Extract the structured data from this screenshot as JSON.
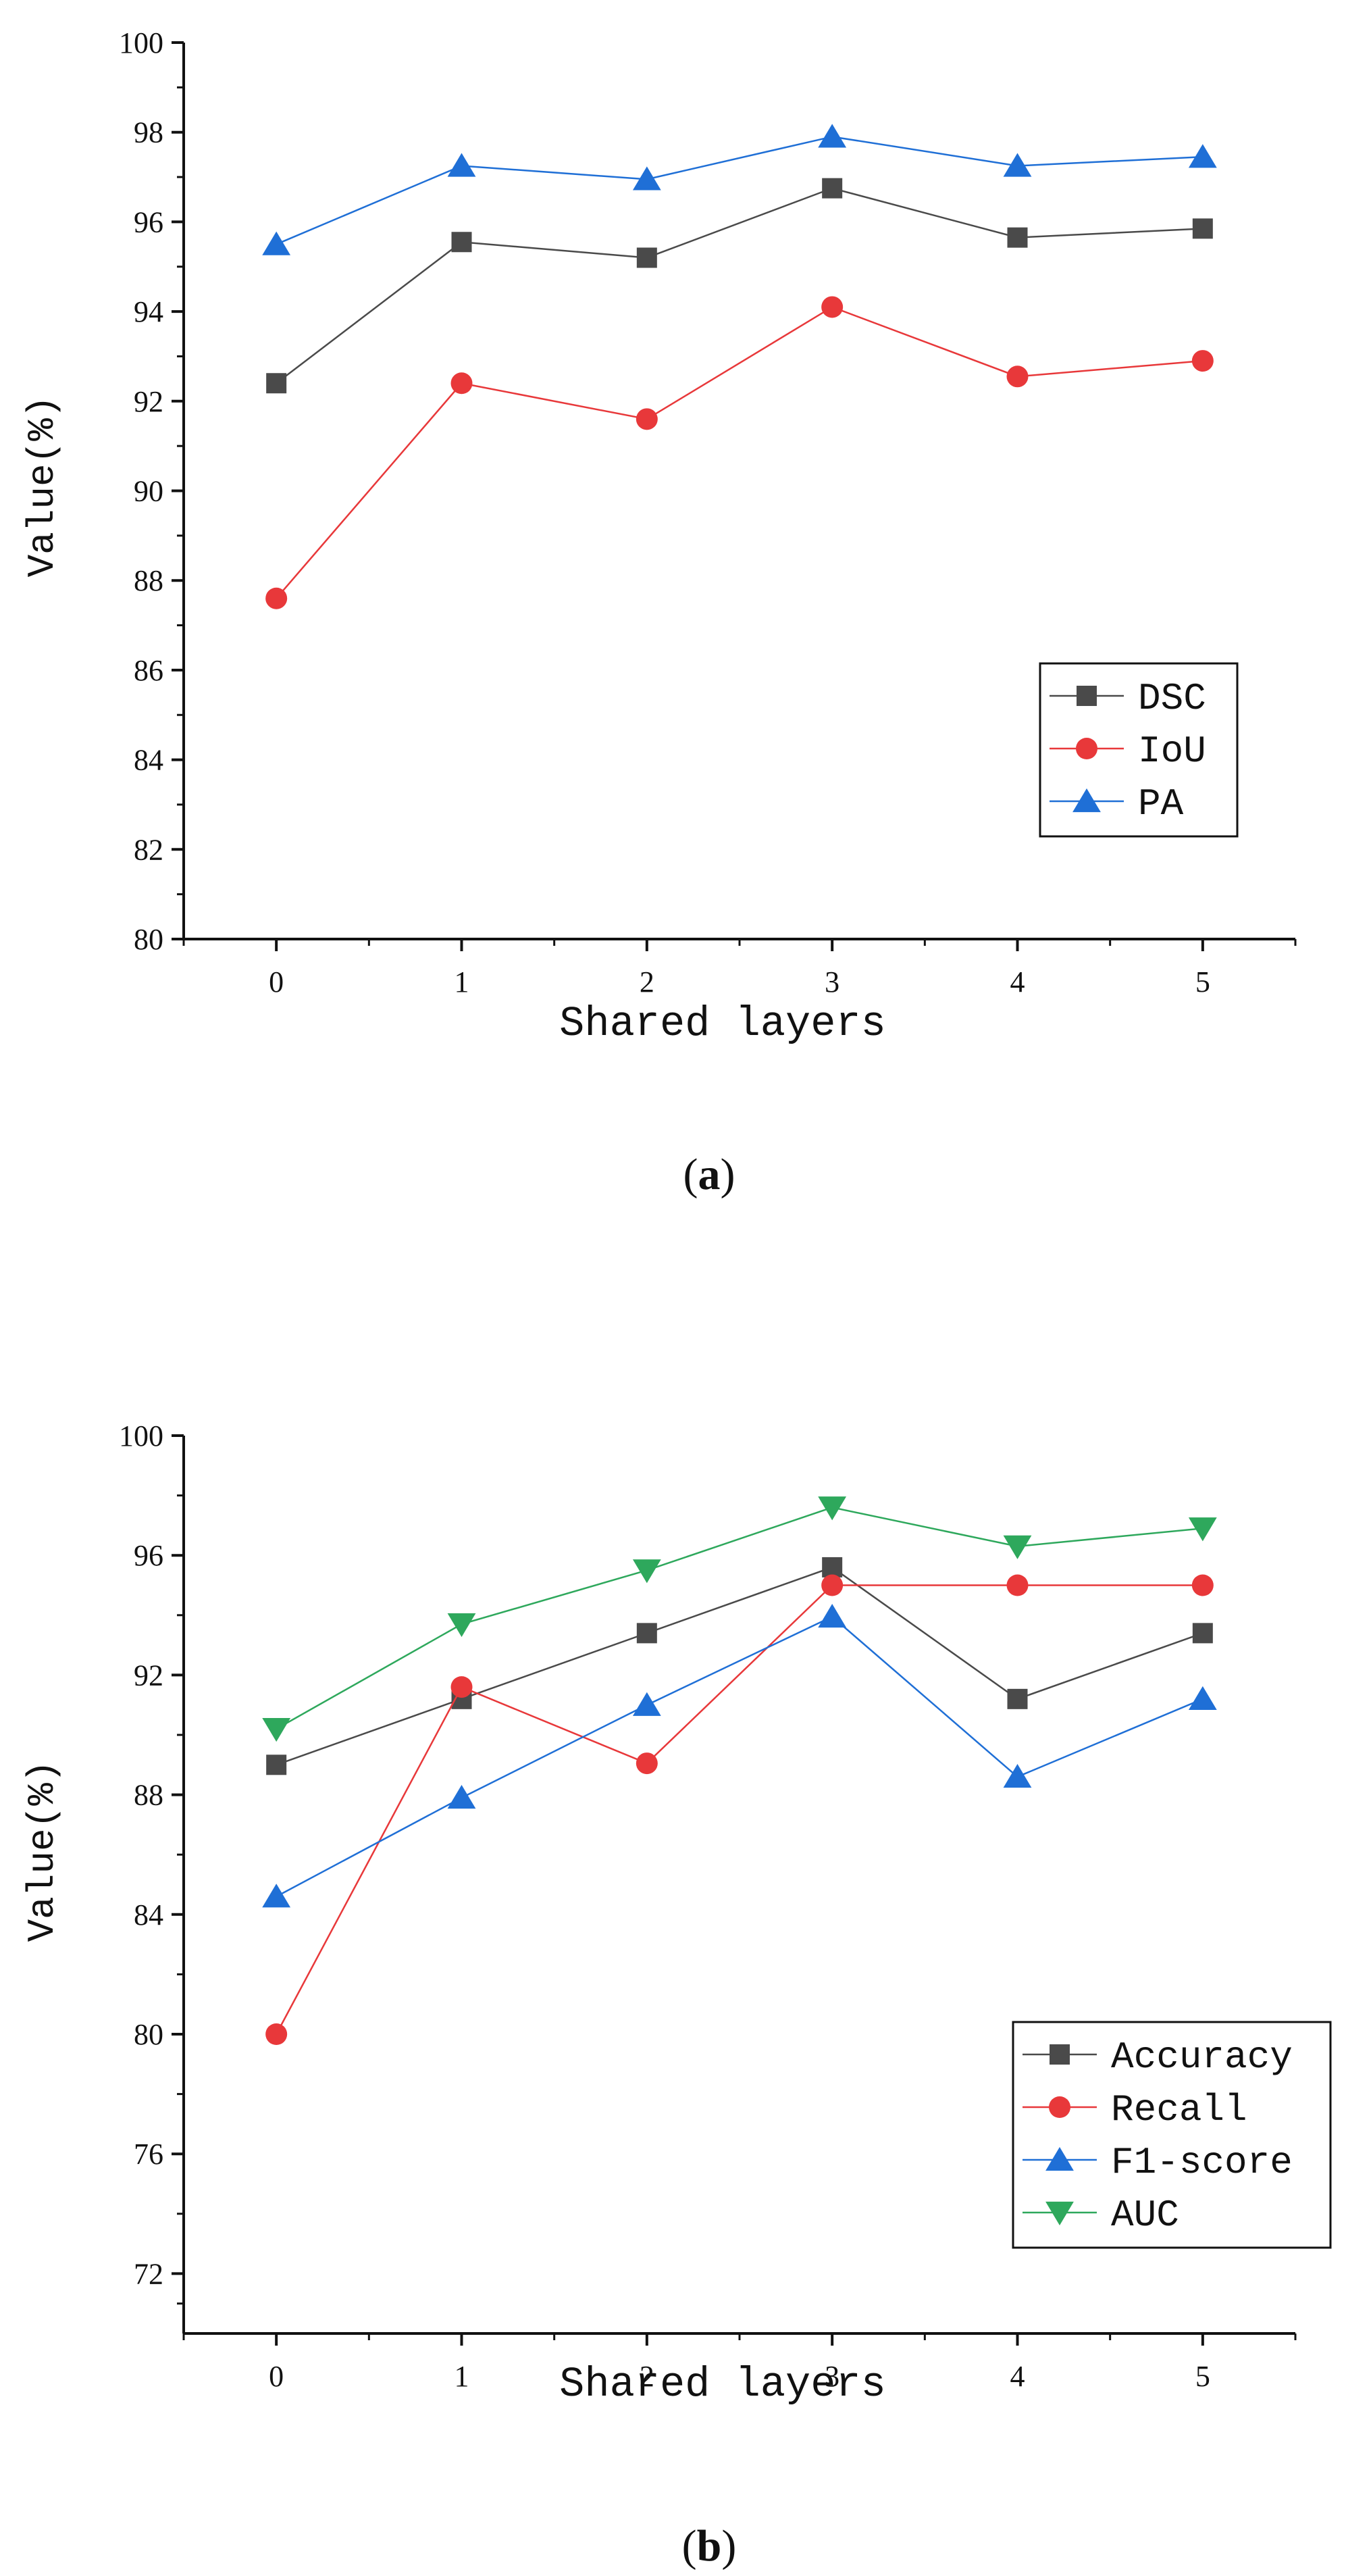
{
  "figure": {
    "panels": [
      {
        "caption_open": "(",
        "caption_letter": "a",
        "caption_close": ")"
      },
      {
        "caption_open": "(",
        "caption_letter": "b",
        "caption_close": ")"
      }
    ]
  },
  "chart_data": [
    {
      "type": "line",
      "xlabel": "Shared layers",
      "ylabel": "Value(%)",
      "x": [
        0,
        1,
        2,
        3,
        4,
        5
      ],
      "xlim": [
        -0.5,
        5.5
      ],
      "ylim": [
        80,
        100
      ],
      "yticks": [
        80,
        82,
        84,
        86,
        88,
        90,
        92,
        94,
        96,
        98,
        100
      ],
      "ytick_labels": [
        "80",
        "82",
        "84",
        "86",
        "88",
        "90",
        "92",
        "94",
        "96",
        "98",
        "100"
      ],
      "xtick_labels": [
        "0",
        "1",
        "2",
        "3",
        "4",
        "5"
      ],
      "legend_position": "lower-right",
      "series": [
        {
          "name": "DSC",
          "marker": "square",
          "color": "#4a4a4a",
          "values": [
            92.4,
            95.55,
            95.2,
            96.75,
            95.65,
            95.85
          ]
        },
        {
          "name": "IoU",
          "marker": "circle",
          "color": "#e8383a",
          "values": [
            87.6,
            92.4,
            91.6,
            94.1,
            92.55,
            92.9
          ]
        },
        {
          "name": "PA",
          "marker": "triangle-up",
          "color": "#1f6fd6",
          "values": [
            95.5,
            97.25,
            96.95,
            97.9,
            97.25,
            97.45
          ]
        }
      ]
    },
    {
      "type": "line",
      "xlabel": "Shared layers",
      "ylabel": "Value(%)",
      "x": [
        0,
        1,
        2,
        3,
        4,
        5
      ],
      "xlim": [
        -0.5,
        5.5
      ],
      "ylim": [
        70,
        100
      ],
      "yticks": [
        72,
        76,
        80,
        84,
        88,
        92,
        96,
        100
      ],
      "ytick_labels": [
        "72",
        "76",
        "80",
        "84",
        "88",
        "92",
        "96",
        "100"
      ],
      "xtick_labels": [
        "0",
        "1",
        "2",
        "3",
        "4",
        "5"
      ],
      "legend_position": "lower-right",
      "series": [
        {
          "name": "Accuracy",
          "marker": "square",
          "color": "#4a4a4a",
          "values": [
            89.0,
            91.2,
            93.4,
            95.6,
            91.2,
            93.4
          ]
        },
        {
          "name": "Recall",
          "marker": "circle",
          "color": "#e8383a",
          "values": [
            80.0,
            91.6,
            89.05,
            95.0,
            95.0,
            95.0
          ]
        },
        {
          "name": "F1-score",
          "marker": "triangle-up",
          "color": "#1f6fd6",
          "values": [
            84.6,
            87.9,
            91.0,
            93.95,
            88.6,
            91.2
          ]
        },
        {
          "name": "AUC",
          "marker": "triangle-down",
          "color": "#2ea85c",
          "values": [
            90.2,
            93.7,
            95.5,
            97.6,
            96.3,
            96.9
          ]
        }
      ]
    }
  ]
}
